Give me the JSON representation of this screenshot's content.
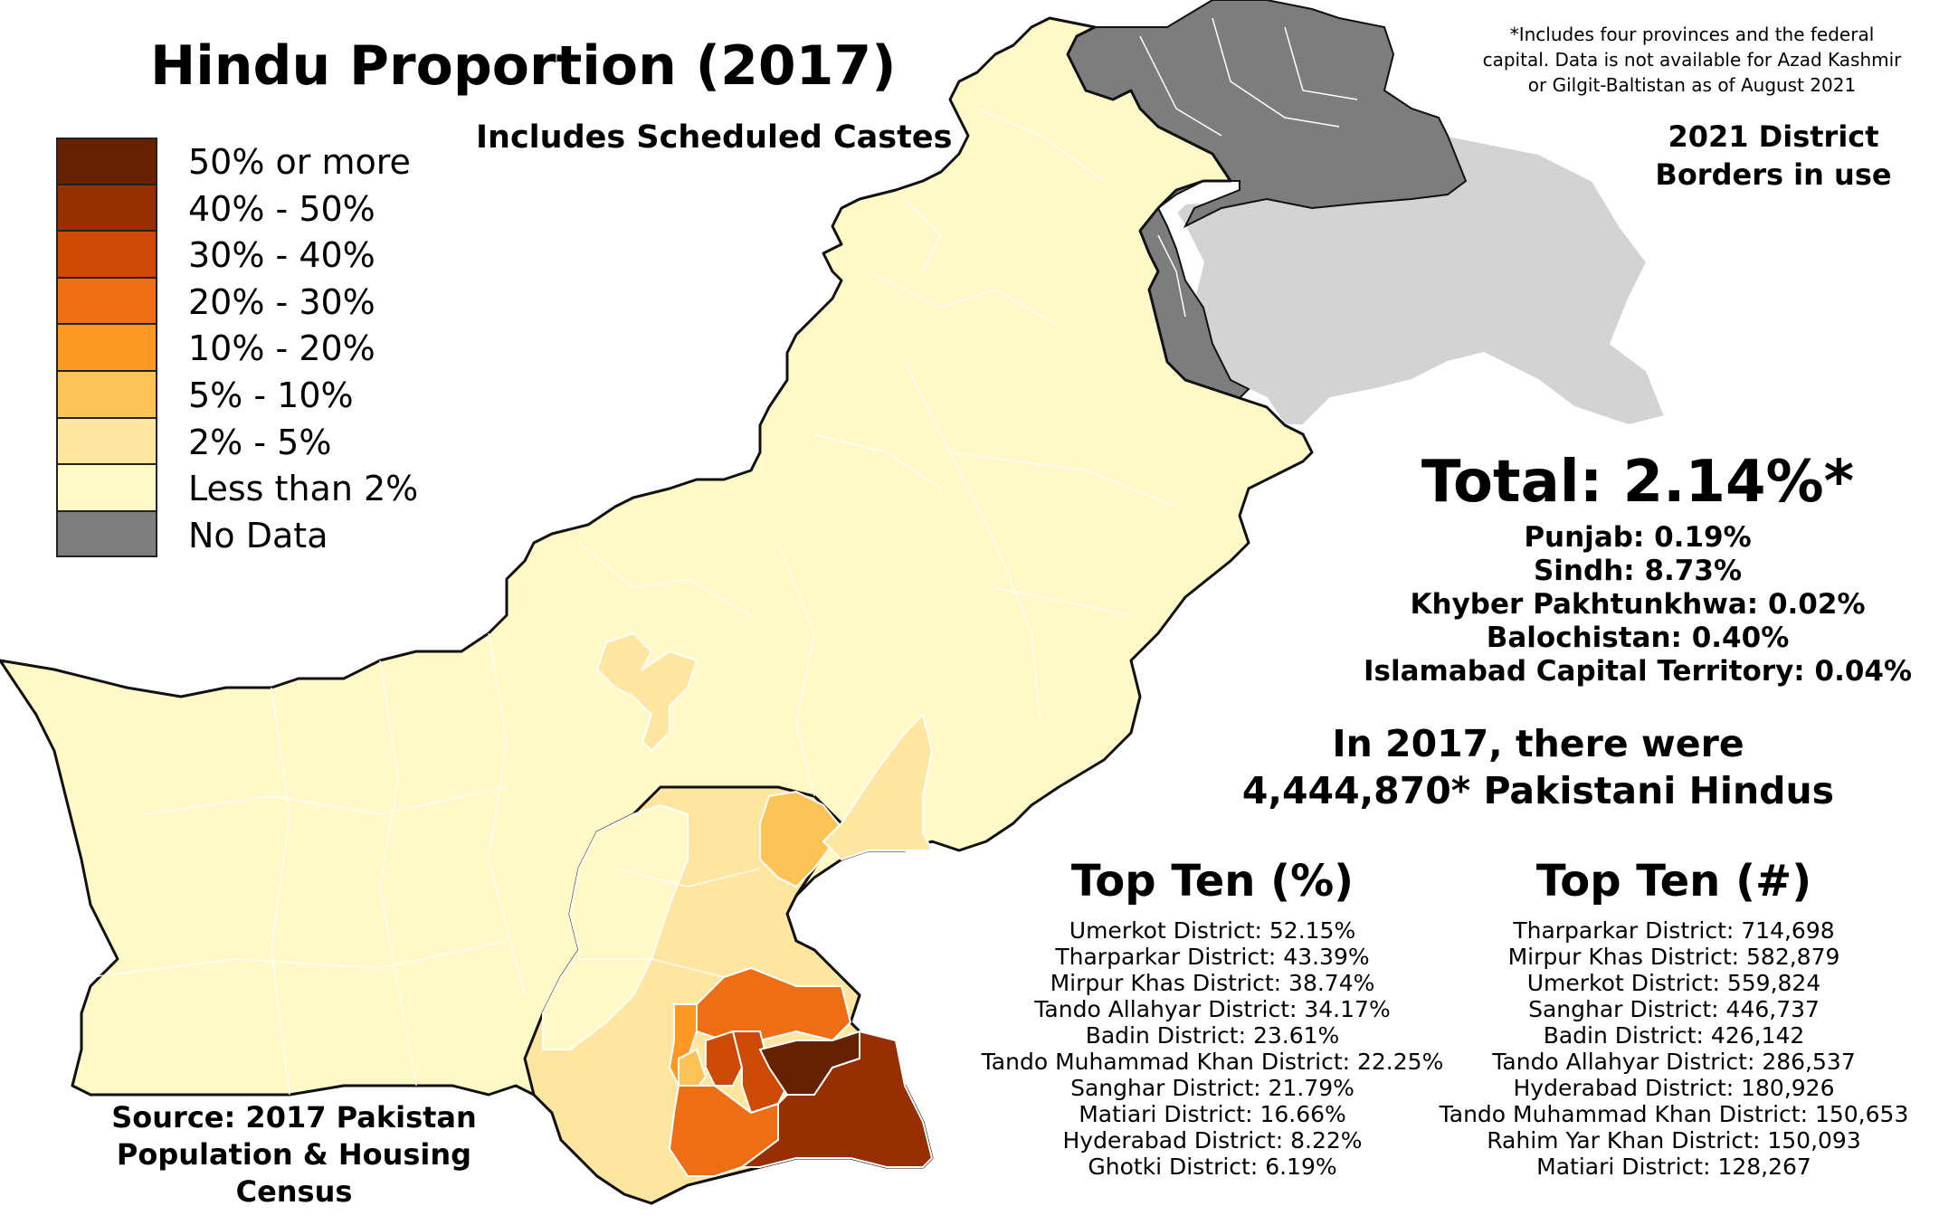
{
  "title": "Hindu Proportion (2017)",
  "subtitle": "Includes Scheduled Castes",
  "note": "*Includes four provinces and the federal capital. Data is not available for Azad Kashmir or Gilgit-Baltistan as of August 2021",
  "borders_note": "2021 District Borders in use",
  "legend": [
    {
      "label": "50% or more",
      "color": "#672000"
    },
    {
      "label": "40% - 50%",
      "color": "#982f00"
    },
    {
      "label": "30% - 40%",
      "color": "#cc4a04"
    },
    {
      "label": "20% - 30%",
      "color": "#ed6e15"
    },
    {
      "label": "10% - 20%",
      "color": "#fb9826"
    },
    {
      "label": "5% - 10%",
      "color": "#fec357"
    },
    {
      "label": "2% - 5%",
      "color": "#fee5a0"
    },
    {
      "label": "Less than 2%",
      "color": "#fff9c8"
    },
    {
      "label": "No Data",
      "color": "#7d7d7d"
    }
  ],
  "total": "Total: 2.14%*",
  "provinces": [
    "Punjab: 0.19%",
    "Sindh: 8.73%",
    "Khyber Pakhtunkhwa: 0.02%",
    "Balochistan: 0.40%",
    "Islamabad Capital Territory: 0.04%"
  ],
  "count_line1": "In 2017, there were",
  "count_line2": "4,444,870* Pakistani Hindus",
  "top_pct": {
    "heading": "Top Ten (%)",
    "items": [
      "Umerkot District: 52.15%",
      "Tharparkar District: 43.39%",
      "Mirpur Khas District: 38.74%",
      "Tando Allahyar District: 34.17%",
      "Badin District: 23.61%",
      "Tando Muhammad Khan District: 22.25%",
      "Sanghar District: 21.79%",
      "Matiari District: 16.66%",
      "Hyderabad District: 8.22%",
      "Ghotki District: 6.19%"
    ]
  },
  "top_num": {
    "heading": "Top Ten (#)",
    "items": [
      "Tharparkar District: 714,698",
      "Mirpur Khas District: 582,879",
      "Umerkot District: 559,824",
      "Sanghar District: 446,737",
      "Badin District: 426,142",
      "Tando Allahyar District: 286,537",
      "Hyderabad District: 180,926",
      "Tando Muhammad Khan District: 150,653",
      "Rahim Yar Khan District: 150,093",
      "Matiari District: 128,267"
    ]
  },
  "source": "Source: 2017 Pakistan Population & Housing Census",
  "colors": {
    "map_base": "#fff9c8",
    "no_data": "#7d7d7d",
    "disputed": "#d3d3d3",
    "outline": "#111111",
    "district_line": "#ffffff"
  }
}
